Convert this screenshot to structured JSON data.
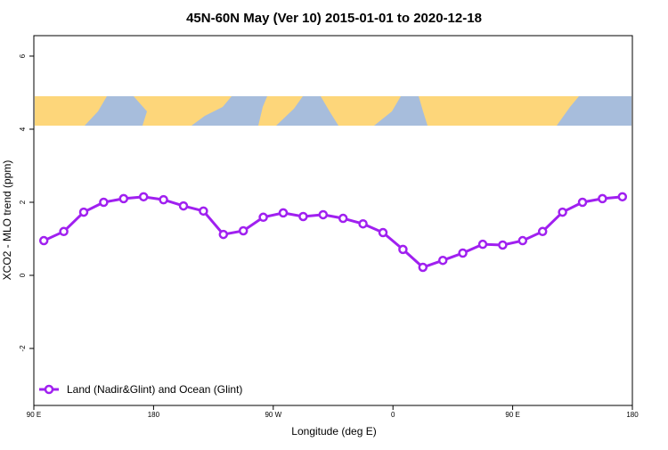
{
  "chart_data": {
    "type": "line",
    "title": "45N-60N May (Ver 10)   2015-01-01 to 2020-12-18",
    "xlabel": "Longitude (deg E)",
    "ylabel": "XCO2 - MLO trend (ppm)",
    "xlim": [
      90,
      540
    ],
    "ylim": [
      -3.56,
      6.56
    ],
    "xticks": [
      {
        "value": 90,
        "label": "90 E"
      },
      180,
      {
        "value": 270,
        "label": "90 W"
      },
      {
        "value": 360,
        "label": "0"
      },
      {
        "value": 450,
        "label": "90 E"
      },
      {
        "value": 540,
        "label": "180"
      }
    ],
    "yticks": [
      -2,
      0,
      2,
      4,
      6
    ],
    "legend": "bottom-left",
    "x": [
      97.5,
      112.5,
      127.5,
      142.5,
      157.5,
      172.5,
      187.5,
      202.5,
      217.5,
      232.5,
      247.5,
      262.5,
      277.5,
      292.5,
      307.5,
      322.5,
      337.5,
      352.5,
      367.5,
      382.5,
      397.5,
      412.5,
      427.5,
      442.5,
      457.5,
      472.5,
      487.5,
      502.5,
      517.5,
      532.5
    ],
    "series": [
      {
        "name": "Land (Nadir&Glint) and Ocean (Glint)",
        "color": "#a020f0",
        "values": [
          0.95,
          1.2,
          1.73,
          2.0,
          2.1,
          2.15,
          2.07,
          1.9,
          1.76,
          1.12,
          1.22,
          1.59,
          1.71,
          1.61,
          1.66,
          1.56,
          1.41,
          1.17,
          0.71,
          0.22,
          0.41,
          0.61,
          0.85,
          0.83,
          0.95,
          1.2,
          1.73,
          2.0,
          2.1,
          2.15
        ]
      }
    ]
  }
}
